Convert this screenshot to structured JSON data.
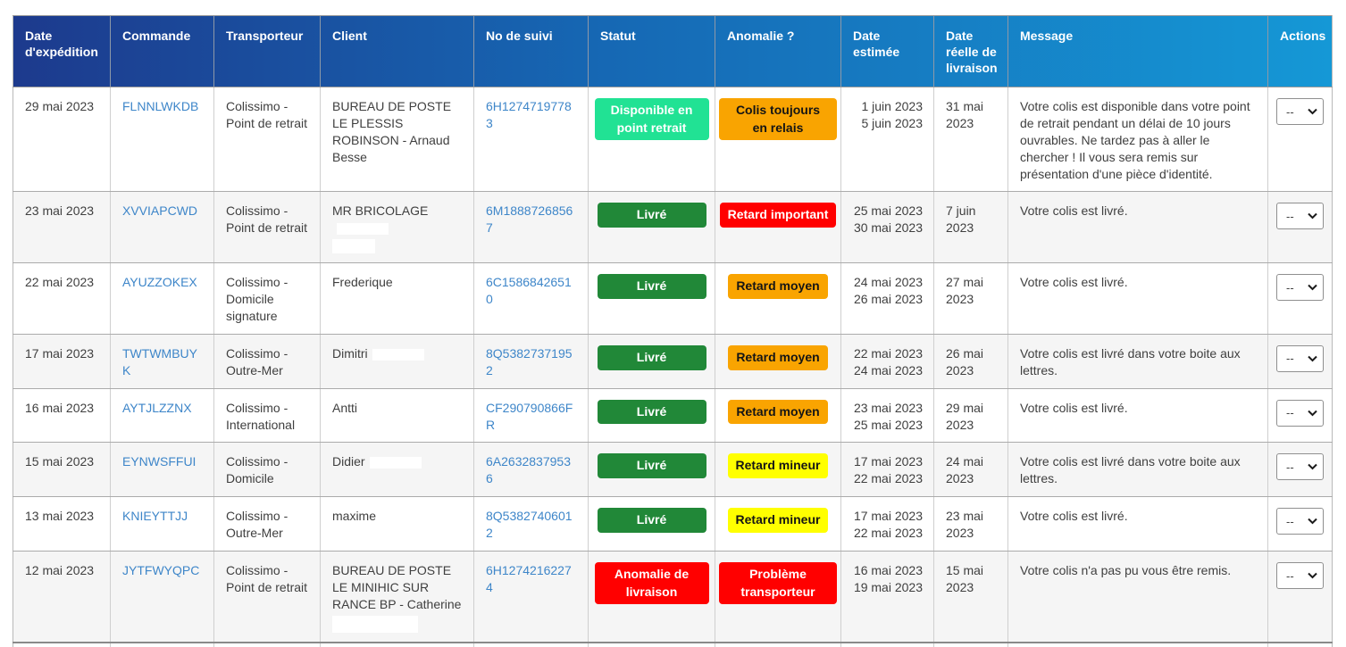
{
  "colors": {
    "header_gradient_start": "#1d3a8d",
    "header_gradient_end": "#1598d6",
    "link_blue": "#3e86c9",
    "status_delivered_green": "#218838",
    "status_pickup_green": "#21e294",
    "status_anomaly_red": "#ff0000",
    "anomaly_orange": "#f9a401",
    "anomaly_yellow": "#ffff00",
    "row_alt_gray": "#f5f5f5"
  },
  "actions": {
    "default_option": "--"
  },
  "table": {
    "columns": [
      {
        "key": "date-expedition",
        "label": "Date d'expédition"
      },
      {
        "key": "commande",
        "label": "Commande"
      },
      {
        "key": "transporteur",
        "label": "Transporteur"
      },
      {
        "key": "client",
        "label": "Client"
      },
      {
        "key": "no-suivi",
        "label": "No de suivi"
      },
      {
        "key": "statut",
        "label": "Statut"
      },
      {
        "key": "anomalie",
        "label": "Anomalie ?"
      },
      {
        "key": "date-estimee",
        "label": "Date estimée"
      },
      {
        "key": "date-reelle",
        "label": "Date réelle de livraison"
      },
      {
        "key": "message",
        "label": "Message"
      },
      {
        "key": "actions",
        "label": "Actions"
      }
    ],
    "rows": [
      {
        "expedition": "29 mai 2023",
        "commande": "FLNNLWKDB",
        "transporteur": "Colissimo - Point de retrait",
        "client": "BUREAU DE POSTE LE PLESSIS ROBINSON - Arnaud Besse",
        "suivi": "6H12747197783",
        "statut": {
          "label": "Disponible en point retrait",
          "style": "bright-green"
        },
        "anomalie": {
          "label": "Colis toujours en relais",
          "style": "orange"
        },
        "date_estimee": "1 juin 2023\n5 juin 2023",
        "date_reelle": "31 mai 2023",
        "message": "Votre colis est disponible dans votre point de retrait pendant un délai de 10 jours ouvrables. Ne tardez pas à aller le chercher ! Il vous sera remis sur présentation d'une pièce d'identité.",
        "action": "--",
        "redaction": []
      },
      {
        "expedition": "23 mai 2023",
        "commande": "XVVIAPCWD",
        "transporteur": "Colissimo - Point de retrait",
        "client": "MR BRICOLAGE",
        "suivi": "6M18887268567",
        "statut": {
          "label": "Livré",
          "style": "green"
        },
        "anomalie": {
          "label": "Retard important",
          "style": "red"
        },
        "date_estimee": "25 mai 2023\n30 mai 2023",
        "date_reelle": "7 juin 2023",
        "message": "Votre colis est livré.",
        "action": "--",
        "redaction": [
          "inline",
          "below-small"
        ]
      },
      {
        "expedition": "22 mai 2023",
        "commande": "AYUZZOKEX",
        "transporteur": "Colissimo - Domicile signature",
        "client": "Frederique",
        "suivi": "6C15868426510",
        "statut": {
          "label": "Livré",
          "style": "green"
        },
        "anomalie": {
          "label": "Retard moyen",
          "style": "orange"
        },
        "date_estimee": "24 mai 2023\n26 mai 2023",
        "date_reelle": "27 mai 2023",
        "message": "Votre colis est livré.",
        "action": "--",
        "redaction": []
      },
      {
        "expedition": "17 mai 2023",
        "commande": "TWTWMBUYK",
        "transporteur": "Colissimo - Outre-Mer",
        "client": "Dimitri",
        "suivi": "8Q53827371952",
        "statut": {
          "label": "Livré",
          "style": "green"
        },
        "anomalie": {
          "label": "Retard moyen",
          "style": "orange"
        },
        "date_estimee": "22 mai 2023\n24 mai 2023",
        "date_reelle": "26 mai 2023",
        "message": "Votre colis est livré dans votre boite aux lettres.",
        "action": "--",
        "redaction": [
          "inline"
        ]
      },
      {
        "expedition": "16 mai 2023",
        "commande": "AYTJLZZNX",
        "transporteur": "Colissimo - International",
        "client": "Antti",
        "suivi": "CF290790866FR",
        "statut": {
          "label": "Livré",
          "style": "green"
        },
        "anomalie": {
          "label": "Retard moyen",
          "style": "orange"
        },
        "date_estimee": "23 mai 2023\n25 mai 2023",
        "date_reelle": "29 mai 2023",
        "message": "Votre colis est livré.",
        "action": "--",
        "redaction": []
      },
      {
        "expedition": "15 mai 2023",
        "commande": "EYNWSFFUI",
        "transporteur": "Colissimo - Domicile",
        "client": "Didier",
        "suivi": "6A26328379536",
        "statut": {
          "label": "Livré",
          "style": "green"
        },
        "anomalie": {
          "label": "Retard mineur",
          "style": "yellow"
        },
        "date_estimee": "17 mai 2023\n22 mai 2023",
        "date_reelle": "24 mai 2023",
        "message": "Votre colis est livré dans votre boite aux lettres.",
        "action": "--",
        "redaction": [
          "inline"
        ]
      },
      {
        "expedition": "13 mai 2023",
        "commande": "KNIEYTTJJ",
        "transporteur": "Colissimo - Outre-Mer",
        "client": "maxime",
        "suivi": "8Q53827406012",
        "statut": {
          "label": "Livré",
          "style": "green"
        },
        "anomalie": {
          "label": "Retard mineur",
          "style": "yellow"
        },
        "date_estimee": "17 mai 2023\n22 mai 2023",
        "date_reelle": "23 mai 2023",
        "message": "Votre colis est livré.",
        "action": "--",
        "redaction": []
      },
      {
        "expedition": "12 mai 2023",
        "commande": "JYTFWYQPC",
        "transporteur": "Colissimo - Point de retrait",
        "client": "BUREAU DE POSTE LE MINIHIC SUR RANCE BP - Catherine",
        "suivi": "6H12742162274",
        "statut": {
          "label": "Anomalie de livraison",
          "style": "red"
        },
        "anomalie": {
          "label": "Problème transporteur",
          "style": "red"
        },
        "date_estimee": "16 mai 2023\n19 mai 2023",
        "date_reelle": "15 mai 2023",
        "message": "Votre colis n'a pas pu vous être remis.",
        "action": "--",
        "redaction": [
          "below"
        ]
      }
    ]
  }
}
